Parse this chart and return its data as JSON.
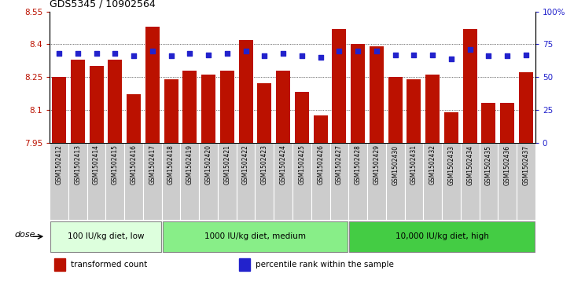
{
  "title": "GDS5345 / 10902564",
  "samples": [
    "GSM1502412",
    "GSM1502413",
    "GSM1502414",
    "GSM1502415",
    "GSM1502416",
    "GSM1502417",
    "GSM1502418",
    "GSM1502419",
    "GSM1502420",
    "GSM1502421",
    "GSM1502422",
    "GSM1502423",
    "GSM1502424",
    "GSM1502425",
    "GSM1502426",
    "GSM1502427",
    "GSM1502428",
    "GSM1502429",
    "GSM1502430",
    "GSM1502431",
    "GSM1502432",
    "GSM1502433",
    "GSM1502434",
    "GSM1502435",
    "GSM1502436",
    "GSM1502437"
  ],
  "bar_values": [
    8.25,
    8.33,
    8.3,
    8.33,
    8.17,
    8.48,
    8.24,
    8.28,
    8.26,
    8.28,
    8.42,
    8.22,
    8.28,
    8.18,
    8.075,
    8.47,
    8.4,
    8.39,
    8.25,
    8.24,
    8.26,
    8.09,
    8.47,
    8.13,
    8.13,
    8.27
  ],
  "percentile_values": [
    68,
    68,
    68,
    68,
    66,
    70,
    66,
    68,
    67,
    68,
    70,
    66,
    68,
    66,
    65,
    70,
    70,
    70,
    67,
    67,
    67,
    64,
    71,
    66,
    66,
    67
  ],
  "ylim_left": [
    7.95,
    8.55
  ],
  "ylim_right": [
    0,
    100
  ],
  "yticks_left": [
    7.95,
    8.1,
    8.25,
    8.4,
    8.55
  ],
  "yticks_right": [
    0,
    25,
    50,
    75,
    100
  ],
  "ytick_labels_right": [
    "0",
    "25",
    "50",
    "75",
    "100%"
  ],
  "grid_values": [
    8.1,
    8.25,
    8.4
  ],
  "bar_color": "#bb1100",
  "dot_color": "#2222cc",
  "bar_width": 0.75,
  "groups": [
    {
      "label": "100 IU/kg diet, low",
      "start": 0,
      "end": 6,
      "color": "#ddffdd"
    },
    {
      "label": "1000 IU/kg diet, medium",
      "start": 6,
      "end": 16,
      "color": "#88ee88"
    },
    {
      "label": "10,000 IU/kg diet, high",
      "start": 16,
      "end": 26,
      "color": "#44cc44"
    }
  ],
  "legend": [
    {
      "label": "transformed count",
      "color": "#bb1100"
    },
    {
      "label": "percentile rank within the sample",
      "color": "#2222cc"
    }
  ],
  "dose_label": "dose",
  "tick_area_color": "#cccccc",
  "title_fontsize": 9
}
